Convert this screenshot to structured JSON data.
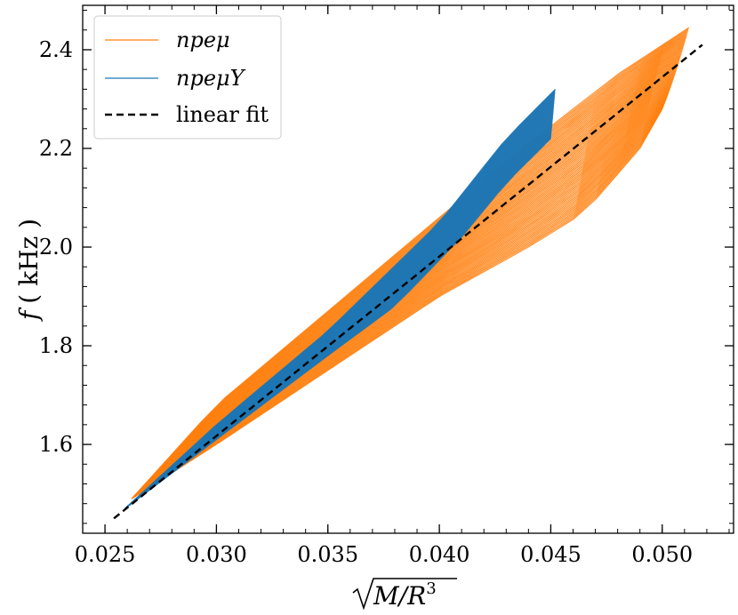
{
  "chart_data": {
    "type": "line",
    "title": "",
    "xlabel": "√(M/R³)",
    "xlabel_parts": {
      "radicand": "M/R",
      "exponent": "3"
    },
    "ylabel": "f ( kHz )",
    "ylabel_parts": {
      "symbol": "f",
      "unit": "( kHz )"
    },
    "xlim": [
      0.024,
      0.0532
    ],
    "ylim": [
      1.42,
      2.49
    ],
    "xticks": [
      0.025,
      0.03,
      0.035,
      0.04,
      0.045,
      0.05
    ],
    "xtick_labels": [
      "0.025",
      "0.030",
      "0.035",
      "0.040",
      "0.045",
      "0.050"
    ],
    "yticks": [
      1.6,
      1.8,
      2.0,
      2.2,
      2.4
    ],
    "ytick_labels": [
      "1.6",
      "1.8",
      "2.0",
      "2.2",
      "2.4"
    ],
    "grid": false,
    "legend_placement": "top-left",
    "series": [
      {
        "name": "npeμ",
        "color": "#ff7f0e",
        "style": "solid-band",
        "band": {
          "start": [
            0.0262,
            1.49
          ],
          "upper_edge": [
            [
              0.0262,
              1.49
            ],
            [
              0.03,
              1.68
            ],
            [
              0.035,
              1.87
            ],
            [
              0.04,
              2.06
            ],
            [
              0.044,
              2.21
            ],
            [
              0.048,
              2.35
            ],
            [
              0.0512,
              2.445
            ]
          ],
          "lower_edge": [
            [
              0.0262,
              1.49
            ],
            [
              0.03,
              1.6
            ],
            [
              0.035,
              1.75
            ],
            [
              0.04,
              1.9
            ],
            [
              0.044,
              2.0
            ],
            [
              0.0465,
              2.07
            ],
            [
              0.049,
              2.2
            ],
            [
              0.05,
              2.28
            ]
          ]
        }
      },
      {
        "name": "npeμY",
        "color": "#1f77b4",
        "style": "solid-band",
        "band": {
          "start": [
            0.0259,
            1.47
          ],
          "upper_edge": [
            [
              0.0259,
              1.47
            ],
            [
              0.03,
              1.64
            ],
            [
              0.035,
              1.83
            ],
            [
              0.04,
              2.05
            ],
            [
              0.043,
              2.22
            ],
            [
              0.0452,
              2.32
            ]
          ],
          "lower_edge": [
            [
              0.0259,
              1.47
            ],
            [
              0.03,
              1.61
            ],
            [
              0.035,
              1.78
            ],
            [
              0.038,
              1.88
            ],
            [
              0.041,
              2.02
            ],
            [
              0.043,
              2.13
            ],
            [
              0.045,
              2.22
            ]
          ]
        }
      },
      {
        "name": "linear fit",
        "color": "#000000",
        "style": "dashed",
        "x": [
          0.0254,
          0.0518
        ],
        "y": [
          1.45,
          2.41
        ]
      }
    ]
  }
}
